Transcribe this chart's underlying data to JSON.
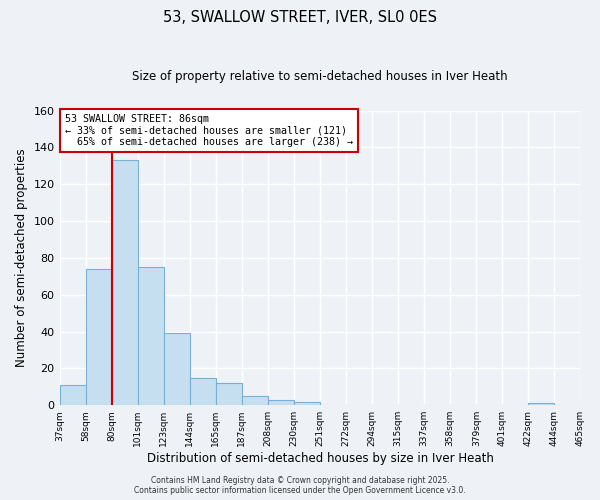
{
  "title": "53, SWALLOW STREET, IVER, SL0 0ES",
  "subtitle": "Size of property relative to semi-detached houses in Iver Heath",
  "xlabel": "Distribution of semi-detached houses by size in Iver Heath",
  "ylabel": "Number of semi-detached properties",
  "bar_values": [
    11,
    74,
    133,
    75,
    39,
    15,
    12,
    5,
    3,
    2,
    0,
    0,
    0,
    0,
    0,
    0,
    0,
    0,
    1,
    0
  ],
  "bin_labels": [
    "37sqm",
    "58sqm",
    "80sqm",
    "101sqm",
    "123sqm",
    "144sqm",
    "165sqm",
    "187sqm",
    "208sqm",
    "230sqm",
    "251sqm",
    "272sqm",
    "294sqm",
    "315sqm",
    "337sqm",
    "358sqm",
    "379sqm",
    "401sqm",
    "422sqm",
    "444sqm",
    "465sqm"
  ],
  "bar_color": "#c5dff0",
  "bar_edge_color": "#7aafd4",
  "vline_color": "#cc0000",
  "vline_x": 2,
  "annotation_title": "53 SWALLOW STREET: 86sqm",
  "annotation_line1": "← 33% of semi-detached houses are smaller (121)",
  "annotation_line2": "  65% of semi-detached houses are larger (238) →",
  "annotation_box_color": "#ffffff",
  "annotation_box_edge_color": "#cc0000",
  "ylim": [
    0,
    160
  ],
  "yticks": [
    0,
    20,
    40,
    60,
    80,
    100,
    120,
    140,
    160
  ],
  "background_color": "#eef2f7",
  "grid_color": "#ffffff",
  "footer_line1": "Contains HM Land Registry data © Crown copyright and database right 2025.",
  "footer_line2": "Contains public sector information licensed under the Open Government Licence v3.0."
}
